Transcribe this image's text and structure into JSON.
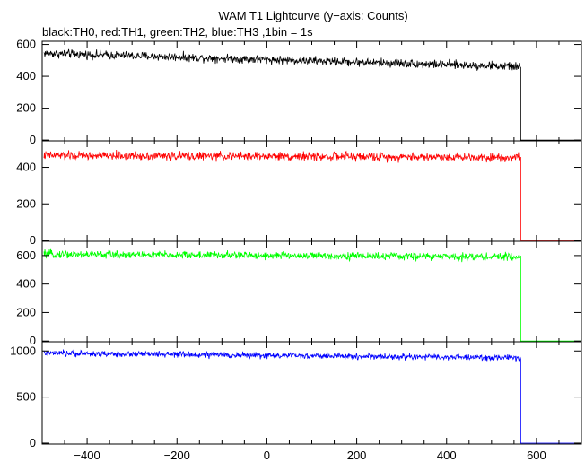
{
  "title": "WAM T1 Lightcurve (y−axis: Counts)",
  "subtitle": "black:TH0, red:TH1, green:TH2, blue:TH3 ,1bin = 1s",
  "chart_data": [
    {
      "type": "line",
      "series": [
        {
          "color": "#000000",
          "values_summary": {
            "x_start": -496,
            "x_end": 565,
            "y_start_mean": 545,
            "y_end_mean": 460,
            "noise_amplitude": 25,
            "after_end_value": 0
          }
        }
      ],
      "xlim": [
        -500,
        700
      ],
      "ylim": [
        -5,
        620
      ],
      "yticks": [
        0,
        200,
        400,
        600
      ],
      "color": "#000000"
    },
    {
      "type": "line",
      "series": [
        {
          "color": "#ff0000",
          "values_summary": {
            "x_start": -496,
            "x_end": 565,
            "y_start_mean": 465,
            "y_end_mean": 455,
            "noise_amplitude": 22,
            "after_end_value": 0
          }
        }
      ],
      "xlim": [
        -500,
        700
      ],
      "ylim": [
        -5,
        545
      ],
      "yticks": [
        0,
        200,
        400
      ],
      "color": "#ff0000"
    },
    {
      "type": "line",
      "series": [
        {
          "color": "#00ff00",
          "values_summary": {
            "x_start": -496,
            "x_end": 565,
            "y_start_mean": 610,
            "y_end_mean": 590,
            "noise_amplitude": 25,
            "after_end_value": 0
          }
        }
      ],
      "xlim": [
        -500,
        700
      ],
      "ylim": [
        -5,
        700
      ],
      "yticks": [
        0,
        200,
        400,
        600
      ],
      "color": "#00ff00"
    },
    {
      "type": "line",
      "series": [
        {
          "color": "#0000ff",
          "values_summary": {
            "x_start": -496,
            "x_end": 565,
            "y_start_mean": 975,
            "y_end_mean": 925,
            "noise_amplitude": 30,
            "after_end_value": 0
          }
        }
      ],
      "xlim": [
        -500,
        700
      ],
      "ylim": [
        -10,
        1100
      ],
      "yticks": [
        0,
        500,
        1000
      ],
      "color": "#0000ff"
    }
  ],
  "xticks": [
    -400,
    -200,
    0,
    200,
    400,
    600
  ]
}
